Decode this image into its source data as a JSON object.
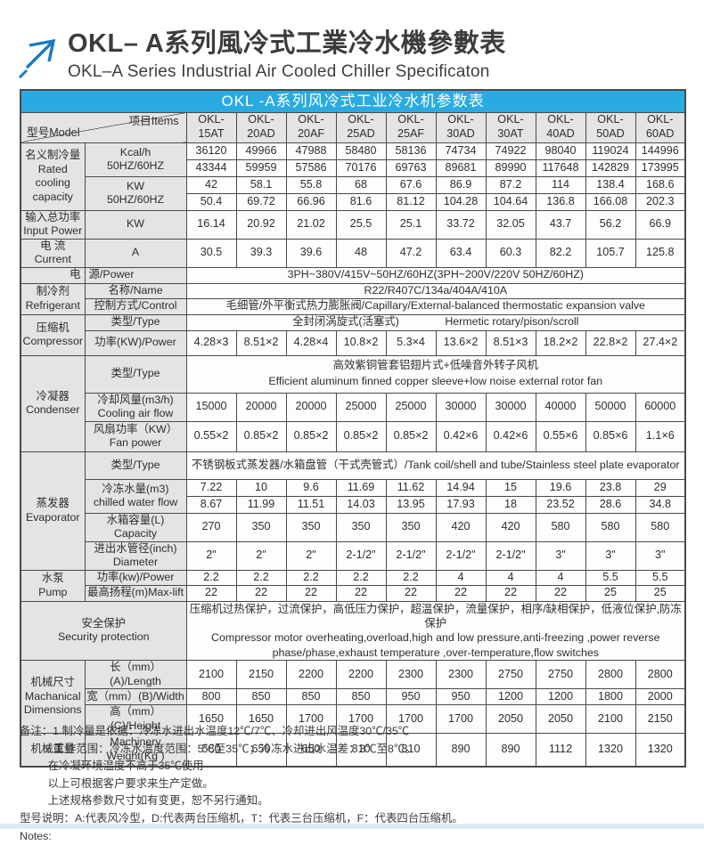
{
  "colors": {
    "accent_blue": "#29abe2",
    "logo_blue": "#1a7abf",
    "label_gray": "#e4e4e4",
    "border_gray": "#4a4a4a",
    "bottom_strip": "#dfe9f1"
  },
  "header": {
    "title_zh": "OKL– A系列風冷式工業冷水機參數表",
    "title_en": "OKL–A Series Industrial Air Cooled Chiller Specificaton"
  },
  "table": {
    "caption": "OKL -A系列风冷式工业冷水机参数表",
    "corner_model": "型号Model",
    "corner_items": "项目Items",
    "models": [
      "OKL-\n15AT",
      "OKL-\n20AD",
      "OKL-\n20AF",
      "OKL-\n25AD",
      "OKL-\n25AF",
      "OKL-\n30AD",
      "OKL-\n30AT",
      "OKL-\n40AD",
      "OKL-\n50AD",
      "OKL-\n60AD"
    ],
    "rated": {
      "category": "名义制冷量\nRated\ncooling\ncapacity",
      "kcal_label": "Kcal/h\n50HZ/60HZ",
      "kcal_50hz": [
        "36120",
        "49966",
        "47988",
        "58480",
        "58136",
        "74734",
        "74922",
        "98040",
        "119024",
        "144996"
      ],
      "kcal_60hz": [
        "43344",
        "59959",
        "57586",
        "70176",
        "69763",
        "89681",
        "89990",
        "117648",
        "142829",
        "173995"
      ],
      "kw_label": "KW\n50HZ/60HZ",
      "kw_50hz": [
        "42",
        "58.1",
        "55.8",
        "68",
        "67.6",
        "86.9",
        "87.2",
        "114",
        "138.4",
        "168.6"
      ],
      "kw_60hz": [
        "50.4",
        "69.72",
        "66.96",
        "81.6",
        "81.12",
        "104.28",
        "104.64",
        "136.8",
        "166.08",
        "202.3"
      ]
    },
    "input_power": {
      "category": "输入总功率\nInput Power",
      "unit": "KW",
      "values": [
        "16.14",
        "20.92",
        "21.02",
        "25.5",
        "25.1",
        "33.72",
        "32.05",
        "43.7",
        "56.2",
        "66.9"
      ]
    },
    "current": {
      "category": "电 流\nCurrent",
      "unit": "A",
      "values": [
        "30.5",
        "39.3",
        "39.6",
        "48",
        "47.2",
        "63.4",
        "60.3",
        "82.2",
        "105.7",
        "125.8"
      ]
    },
    "power_supply": {
      "cat": "电",
      "item": "源/Power",
      "text": "3PH~380V/415V~50HZ/60HZ(3PH~200V/220V  50HZ/60HZ)"
    },
    "refrigerant": {
      "category": "制冷剂\nRefrigerant",
      "name_label": "名称/Name",
      "name_value": "R22/R407C/134a/404A/410A",
      "control_label": "控制方式/Control",
      "control_value": "毛细管/外平衡式热力膨胀阀/Capillary/External-balanced thermostatic expansion valve"
    },
    "compressor": {
      "category": "压缩机\nCompressor",
      "type_label": "类型/Type",
      "type_zh": "全封闭涡旋式(活塞式)",
      "type_en": "Hermetic rotary/pison/scroll",
      "power_label": "功率(KW)/Power",
      "power_values": [
        "4.28×3",
        "8.51×2",
        "4.28×4",
        "10.8×2",
        "5.3×4",
        "13.6×2",
        "8.51×3",
        "18.2×2",
        "22.8×2",
        "27.4×2"
      ]
    },
    "condenser": {
      "category": "冷凝器\nCondenser",
      "type_label": "类型/Type",
      "type_zh": "高效紫铜管套铝翅片式+低噪音外转子风机",
      "type_en": "Efficient aluminum finned copper sleeve+low noise external rotor fan",
      "airflow_label": "冷却风量(m3/h)\nCooling air flow",
      "airflow_values": [
        "15000",
        "20000",
        "20000",
        "25000",
        "25000",
        "30000",
        "30000",
        "40000",
        "50000",
        "60000"
      ],
      "fan_label": "风扇功率（KW）\nFan power",
      "fan_values": [
        "0.55×2",
        "0.85×2",
        "0.85×2",
        "0.85×2",
        "0.85×2",
        "0.42×6",
        "0.42×6",
        "0.55×6",
        "0.85×6",
        "1.1×6"
      ]
    },
    "evaporator": {
      "category": "蒸发器\nEvaporator",
      "type_label": "类型/Type",
      "type_value": "不锈钢板式蒸发器/水箱盘管（干式壳管式）/Tank coil/shell and tube/Stainless steel plate evaporator",
      "chilled_label": "冷冻水量(m3)\nchilled water flow",
      "chilled_50hz": [
        "7.22",
        "10",
        "9.6",
        "11.69",
        "11.62",
        "14.94",
        "15",
        "19.6",
        "23.8",
        "29"
      ],
      "chilled_60hz": [
        "8.67",
        "11.99",
        "11.51",
        "14.03",
        "13.95",
        "17.93",
        "18",
        "23.52",
        "28.6",
        "34.8"
      ],
      "capacity_label": "水箱容量(L)\nCapacity",
      "capacity_values": [
        "270",
        "350",
        "350",
        "350",
        "350",
        "420",
        "420",
        "580",
        "580",
        "580"
      ],
      "diameter_label": "进出水管径(inch)\nDiameter",
      "diameter_values": [
        "2\"",
        "2\"",
        "2\"",
        "2-1/2\"",
        "2-1/2\"",
        "2-1/2\"",
        "2-1/2\"",
        "3\"",
        "3\"",
        "3\""
      ]
    },
    "pump": {
      "category": "水泵\nPump",
      "power_label": "功率(kw)/Power",
      "power_values": [
        "2.2",
        "2.2",
        "2.2",
        "2.2",
        "2.2",
        "4",
        "4",
        "4",
        "5.5",
        "5.5"
      ],
      "lift_label": "最高扬程(m)Max-lift",
      "lift_values": [
        "22",
        "22",
        "22",
        "22",
        "22",
        "22",
        "22",
        "22",
        "25",
        "25"
      ]
    },
    "security": {
      "label": "安全保护\nSecurity protection",
      "zh": "压缩机过热保护，过流保护，高低压力保护，超温保护，流量保护，相序/缺相保护，低液位保护,防冻保护",
      "en": "Compressor motor overheating,overload,high and low pressure,anti-freezing ,power reverse phase/phase,exhaust temperature ,over-temperature,flow switches"
    },
    "dimensions": {
      "category": "机械尺寸\nMachanical\nDimensions",
      "length_label": "长（mm）(A)/Length",
      "length_values": [
        "2100",
        "2150",
        "2200",
        "2200",
        "2300",
        "2300",
        "2750",
        "2750",
        "2800",
        "2800"
      ],
      "width_label": "宽（mm）(B)/Width",
      "width_values": [
        "800",
        "850",
        "850",
        "850",
        "950",
        "950",
        "1200",
        "1200",
        "1800",
        "2000"
      ],
      "height_label": "高（mm）(C)/Height",
      "height_values": [
        "1650",
        "1650",
        "1700",
        "1700",
        "1700",
        "1700",
        "2050",
        "2050",
        "2100",
        "2150"
      ]
    },
    "weight": {
      "category": "机械重量",
      "label": "Machinery\nWeight(Kg )",
      "values": [
        "580",
        "650",
        "650",
        "810",
        "810",
        "890",
        "890",
        "1112",
        "1320",
        "1320"
      ]
    }
  },
  "notes": {
    "lines": [
      "备注：1.制冷量是依据：冷冻水进出水温度12℃/7℃、冷却进出风温度30℃/35℃",
      "　　 2.工作范围：冷冻水温度范围：5℃至35℃；冷冻水进出水温差：3℃至8℃。",
      "　　  在冷凝环境温度不高于35℃使用",
      "　　  以上可根据客户要求来生产定做。",
      "　　  上述规格参数尺寸如有变更，恕不另行通知。",
      "型号说明：A:代表风冷型，D:代表两台压缩机，T：代表三台压缩机，F：代表四台压缩机。",
      "Notes:"
    ]
  }
}
